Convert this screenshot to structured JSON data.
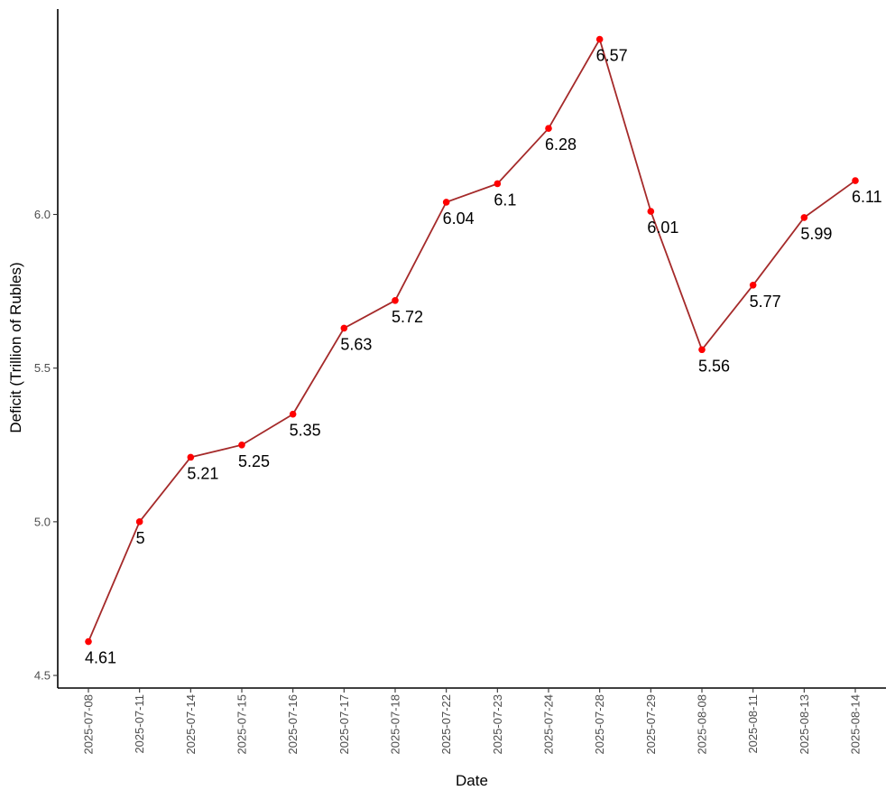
{
  "chart_data": {
    "type": "line",
    "title": "",
    "xlabel": "Date",
    "ylabel": "Deficit (Trillion of Rubles)",
    "categories": [
      "2025-07-08",
      "2025-07-11",
      "2025-07-14",
      "2025-07-15",
      "2025-07-16",
      "2025-07-17",
      "2025-07-18",
      "2025-07-22",
      "2025-07-23",
      "2025-07-24",
      "2025-07-28",
      "2025-07-29",
      "2025-08-08",
      "2025-08-11",
      "2025-08-13",
      "2025-08-14"
    ],
    "values": [
      4.61,
      5.0,
      5.21,
      5.25,
      5.35,
      5.63,
      5.72,
      6.04,
      6.1,
      6.28,
      6.57,
      6.01,
      5.56,
      5.77,
      5.99,
      6.11
    ],
    "data_labels": [
      "4.61",
      "5",
      "5.21",
      "5.25",
      "5.35",
      "5.63",
      "5.72",
      "6.04",
      "6.1",
      "6.28",
      "6.57",
      "6.01",
      "5.56",
      "5.77",
      "5.99",
      "6.11"
    ],
    "ylim": [
      4.47,
      6.67
    ],
    "yticks": [
      4.5,
      5.0,
      5.5,
      6.0
    ],
    "ytick_labels": [
      "4.5",
      "5.0",
      "5.5",
      "6.0"
    ],
    "grid": false,
    "legend": "none",
    "line_color": "#a52a2a",
    "point_color": "#ff0000"
  }
}
